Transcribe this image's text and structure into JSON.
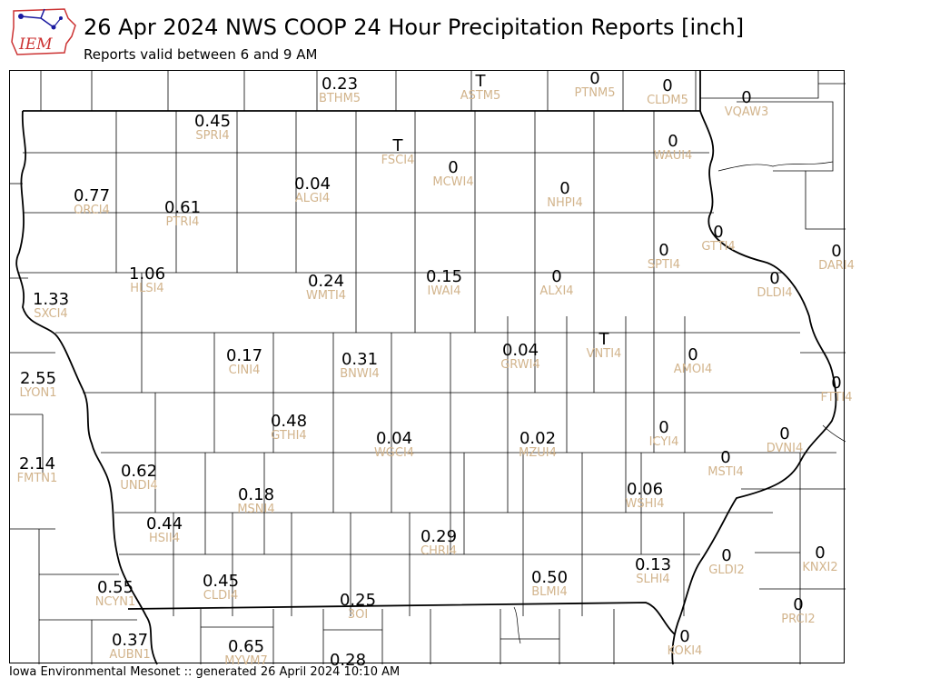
{
  "header": {
    "logo_text": "IEM",
    "title": "26 Apr 2024 NWS COOP 24 Hour Precipitation Reports [inch]",
    "subtitle": "Reports valid between 6 and 9 AM"
  },
  "colors": {
    "value_text": "#000000",
    "station_id_text": "#d2b48c",
    "county_lines": "#000000",
    "logo_red": "#cc3333",
    "logo_blue": "#1a1aa0"
  },
  "stations": [
    {
      "id": "BTHM5",
      "value": "0.23"
    },
    {
      "id": "ASTM5",
      "value": "T"
    },
    {
      "id": "PTNM5",
      "value": "0"
    },
    {
      "id": "CLDM5",
      "value": "0"
    },
    {
      "id": "VQAW3",
      "value": "0"
    },
    {
      "id": "SPRI4",
      "value": "0.45"
    },
    {
      "id": "FSCI4",
      "value": "T"
    },
    {
      "id": "MCWI4",
      "value": "0"
    },
    {
      "id": "WAUI4",
      "value": "0"
    },
    {
      "id": "ORCI4",
      "value": "0.77"
    },
    {
      "id": "PTRI4",
      "value": "0.61"
    },
    {
      "id": "ALGI4",
      "value": "0.04"
    },
    {
      "id": "NHPI4",
      "value": "0"
    },
    {
      "id": "GTTI4",
      "value": "0"
    },
    {
      "id": "SPTI4",
      "value": "0"
    },
    {
      "id": "DARI4",
      "value": "0"
    },
    {
      "id": "HLSI4",
      "value": "1.06"
    },
    {
      "id": "SXCI4",
      "value": "1.33"
    },
    {
      "id": "WMTI4",
      "value": "0.24"
    },
    {
      "id": "IWAI4",
      "value": "0.15"
    },
    {
      "id": "ALXI4",
      "value": "0"
    },
    {
      "id": "DLDI4",
      "value": "0"
    },
    {
      "id": "CINI4",
      "value": "0.17"
    },
    {
      "id": "BNWI4",
      "value": "0.31"
    },
    {
      "id": "GRWI4",
      "value": "0.04"
    },
    {
      "id": "VNTI4",
      "value": "T"
    },
    {
      "id": "AMOI4",
      "value": "0"
    },
    {
      "id": "LYON1",
      "value": "2.55"
    },
    {
      "id": "FTTI4",
      "value": "0"
    },
    {
      "id": "GTHI4",
      "value": "0.48"
    },
    {
      "id": "WGCI4",
      "value": "0.04"
    },
    {
      "id": "MZUI4",
      "value": "0.02"
    },
    {
      "id": "ICYI4",
      "value": "0"
    },
    {
      "id": "DVNI4",
      "value": "0"
    },
    {
      "id": "FMTN1",
      "value": "2.14"
    },
    {
      "id": "UNDI4",
      "value": "0.62"
    },
    {
      "id": "MSTI4",
      "value": "0"
    },
    {
      "id": "MSNI4",
      "value": "0.18"
    },
    {
      "id": "WSHI4",
      "value": "0.06"
    },
    {
      "id": "HSII4",
      "value": "0.44"
    },
    {
      "id": "CHRI4",
      "value": "0.29"
    },
    {
      "id": "KNXI2",
      "value": "0"
    },
    {
      "id": "GLDI2",
      "value": "0"
    },
    {
      "id": "SLHI4",
      "value": "0.13"
    },
    {
      "id": "NCYN1",
      "value": "0.55"
    },
    {
      "id": "CLDI4",
      "value": "0.45"
    },
    {
      "id": "BLMI4",
      "value": "0.50"
    },
    {
      "id": "3OI",
      "value": "0.25"
    },
    {
      "id": "PRCI2",
      "value": "0"
    },
    {
      "id": "AUBN1",
      "value": "0.37"
    },
    {
      "id": "MYVM7",
      "value": "0.65"
    },
    {
      "id": "",
      "value": "0.28"
    },
    {
      "id": "KOKI4",
      "value": "0"
    }
  ],
  "footer": {
    "credit": "Iowa Environmental Mesonet :: generated 26 April 2024 10:10 AM"
  }
}
